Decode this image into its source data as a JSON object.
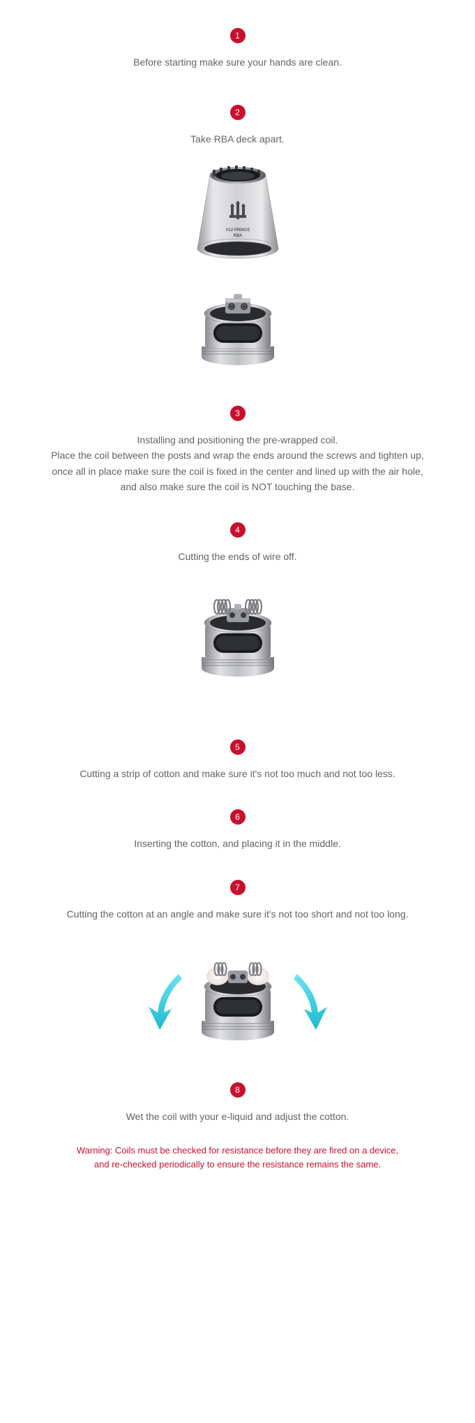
{
  "colors": {
    "badge_bg": "#c8102e",
    "text": "#636363",
    "warning": "#c8102e",
    "arrow": "#3ad0e6",
    "metal_light": "#e8e8ea",
    "metal_mid": "#b8b9bd",
    "metal_dark": "#6a6b70",
    "metal_shadow": "#3a3b3f"
  },
  "steps": [
    {
      "num": "1",
      "text": "Before starting make sure your hands are clean."
    },
    {
      "num": "2",
      "text": "Take RBA deck apart."
    },
    {
      "num": "3",
      "text": "Installing and positioning the pre-wrapped coil.\nPlace the coil between the posts and wrap the ends around the screws and tighten up,\nonce all in place make sure the coil is fixed in the center and lined up with the air hole,\nand also make sure the coil is NOT touching the base."
    },
    {
      "num": "4",
      "text": "Cutting the ends of wire off."
    },
    {
      "num": "5",
      "text": "Cutting a strip of cotton and make sure it's not too much and not too less."
    },
    {
      "num": "6",
      "text": "Inserting the cotton, and placing it in the middle."
    },
    {
      "num": "7",
      "text": "Cutting the cotton at an angle and make sure it's not too short and not too long."
    },
    {
      "num": "8",
      "text": "Wet the coil with your e-liquid and adjust the cotton."
    }
  ],
  "deck_label_top": "V12 PRINCE",
  "deck_label_bottom": "RBA",
  "warning": "Warning: Coils must be checked for resistance before they are fired on a device,\nand re-checked periodically to ensure the resistance remains the same."
}
